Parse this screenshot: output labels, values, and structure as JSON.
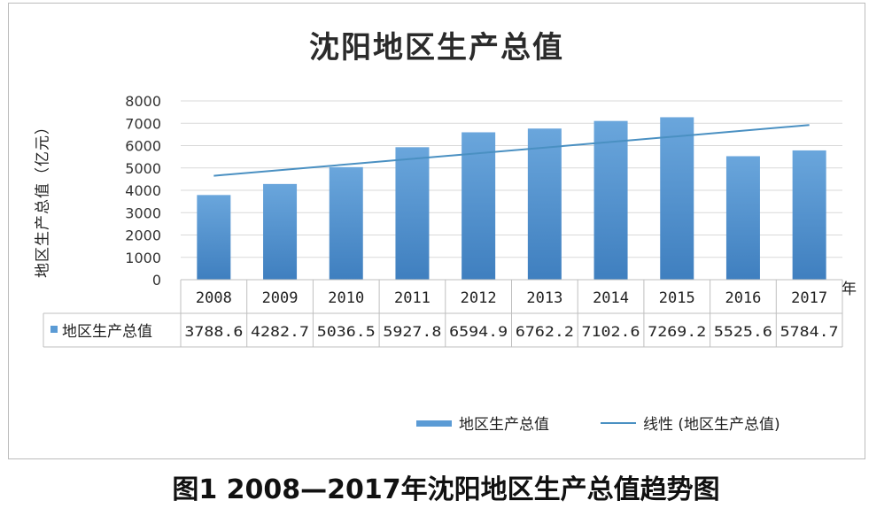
{
  "chart_data": {
    "type": "bar",
    "title": "沈阳地区生产总值",
    "ylabel": "地区生产总值（亿元）",
    "xlabel": "年",
    "ylim": [
      0,
      8000
    ],
    "yticks": [
      "0",
      "1000",
      "2000",
      "3000",
      "4000",
      "5000",
      "6000",
      "7000",
      "8000"
    ],
    "categories": [
      "2008",
      "2009",
      "2010",
      "2011",
      "2012",
      "2013",
      "2014",
      "2015",
      "2016",
      "2017"
    ],
    "series": [
      {
        "name": "地区生产总值",
        "values": [
          3788.6,
          4282.7,
          5036.5,
          5927.8,
          6594.9,
          6762.2,
          7102.6,
          7269.2,
          5525.6,
          5784.7
        ],
        "value_labels": [
          "3788.6",
          "4282.7",
          "5036.5",
          "5927.8",
          "6594.9",
          "6762.2",
          "7102.6",
          "7269.2",
          "5525.6",
          "5784.7"
        ],
        "color": "#5b9bd5"
      }
    ],
    "trendline": {
      "name": "线性 (地区生产总值)",
      "start": 4650,
      "end": 6920,
      "color": "#4a90c2"
    },
    "grid": true,
    "data_table": true,
    "legend_position": "bottom"
  },
  "caption": "图1 2008—2017年沈阳地区生产总值趋势图"
}
